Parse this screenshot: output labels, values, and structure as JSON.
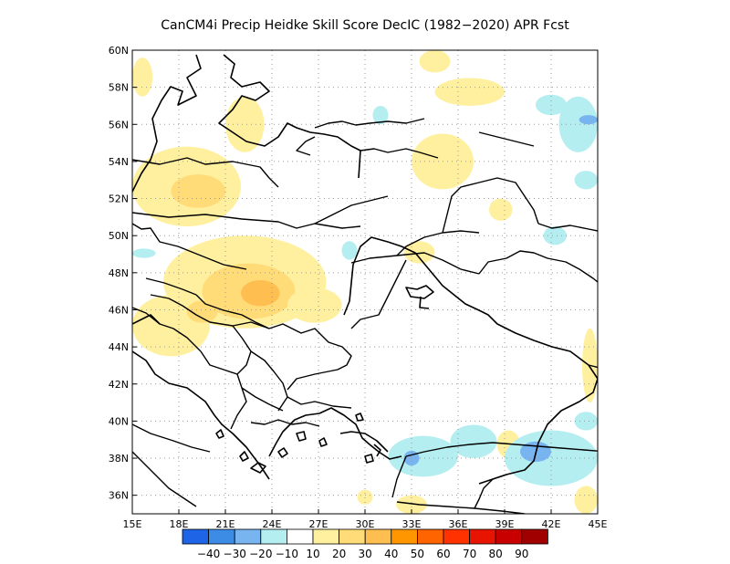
{
  "title": "CanCM4i Precip Heidke Skill Score DecIC (1982−2020) APR Fcst",
  "lon_ticks": [
    "15E",
    "18E",
    "21E",
    "24E",
    "27E",
    "30E",
    "33E",
    "36E",
    "39E",
    "42E",
    "45E"
  ],
  "lat_ticks": [
    "60N",
    "58N",
    "56N",
    "54N",
    "52N",
    "50N",
    "48N",
    "46N",
    "44N",
    "42N",
    "40N",
    "38N",
    "36N"
  ],
  "map_extent": {
    "lon": [
      15,
      45
    ],
    "lat": [
      35,
      60
    ]
  },
  "colorbar": {
    "labels": [
      "−40",
      "−30",
      "−20",
      "−10",
      "10",
      "20",
      "30",
      "40",
      "50",
      "60",
      "70",
      "80",
      "90"
    ],
    "colors": [
      "#1e64e6",
      "#3c8ce6",
      "#78b4f0",
      "#b4eef0",
      "#ffffff",
      "#fff0a0",
      "#ffdc78",
      "#ffbe50",
      "#ff9600",
      "#ff6400",
      "#ff3200",
      "#e61400",
      "#c80000",
      "#a00000"
    ]
  },
  "shaded_regions": [
    {
      "level": 10,
      "lon": [
        15.0,
        16.3
      ],
      "lat": [
        57.5,
        59.6
      ]
    },
    {
      "level": 10,
      "lon": [
        15.0,
        22.0
      ],
      "lat": [
        50.5,
        54.8
      ]
    },
    {
      "level": 20,
      "lon": [
        17.5,
        21.0
      ],
      "lat": [
        51.5,
        53.3
      ]
    },
    {
      "level": 10,
      "lon": [
        21.0,
        23.5
      ],
      "lat": [
        54.5,
        57.5
      ]
    },
    {
      "level": 10,
      "lon": [
        17.0,
        27.5
      ],
      "lat": [
        45.0,
        50.0
      ]
    },
    {
      "level": 20,
      "lon": [
        19.5,
        25.5
      ],
      "lat": [
        45.5,
        48.5
      ]
    },
    {
      "level": 30,
      "lon": [
        22.0,
        24.5
      ],
      "lat": [
        46.2,
        47.6
      ]
    },
    {
      "level": 10,
      "lon": [
        15.0,
        20.0
      ],
      "lat": [
        43.5,
        46.8
      ]
    },
    {
      "level": 20,
      "lon": [
        18.5,
        20.5
      ],
      "lat": [
        45.3,
        46.5
      ]
    },
    {
      "level": 10,
      "lon": [
        25.0,
        28.5
      ],
      "lat": [
        45.3,
        47.2
      ]
    },
    {
      "level": 10,
      "lon": [
        33.0,
        37.0
      ],
      "lat": [
        52.5,
        55.5
      ]
    },
    {
      "level": 10,
      "lon": [
        34.5,
        39.0
      ],
      "lat": [
        57.0,
        58.5
      ]
    },
    {
      "level": 10,
      "lon": [
        33.5,
        35.5
      ],
      "lat": [
        58.8,
        60.0
      ]
    },
    {
      "level": 10,
      "lon": [
        38.0,
        39.5
      ],
      "lat": [
        50.8,
        52.0
      ]
    },
    {
      "level": 10,
      "lon": [
        32.5,
        34.5
      ],
      "lat": [
        48.5,
        49.7
      ]
    },
    {
      "level": 10,
      "lon": [
        44.0,
        45.0
      ],
      "lat": [
        41.0,
        45.0
      ]
    },
    {
      "level": 10,
      "lon": [
        38.5,
        40.0
      ],
      "lat": [
        38.0,
        39.5
      ]
    },
    {
      "level": 10,
      "lon": [
        43.5,
        45.0
      ],
      "lat": [
        35.0,
        36.5
      ]
    },
    {
      "level": 10,
      "lon": [
        32.0,
        34.0
      ],
      "lat": [
        35.0,
        36.0
      ]
    },
    {
      "level": 10,
      "lon": [
        29.5,
        30.5
      ],
      "lat": [
        35.5,
        36.3
      ]
    },
    {
      "level": -10,
      "lon": [
        15.0,
        16.5
      ],
      "lat": [
        48.8,
        49.3
      ]
    },
    {
      "level": -10,
      "lon": [
        28.5,
        29.5
      ],
      "lat": [
        48.7,
        49.7
      ]
    },
    {
      "level": -10,
      "lon": [
        41.5,
        43.0
      ],
      "lat": [
        49.5,
        50.5
      ]
    },
    {
      "level": -10,
      "lon": [
        42.5,
        45.0
      ],
      "lat": [
        54.5,
        57.5
      ]
    },
    {
      "level": -10,
      "lon": [
        41.0,
        43.0
      ],
      "lat": [
        56.5,
        57.6
      ]
    },
    {
      "level": -10,
      "lon": [
        43.5,
        45.0
      ],
      "lat": [
        52.5,
        53.5
      ]
    },
    {
      "level": -20,
      "lon": [
        43.8,
        45.0
      ],
      "lat": [
        56.0,
        56.5
      ]
    },
    {
      "level": -10,
      "lon": [
        30.5,
        31.5
      ],
      "lat": [
        56.0,
        57.0
      ]
    },
    {
      "level": -10,
      "lon": [
        31.5,
        36.0
      ],
      "lat": [
        37.0,
        39.2
      ]
    },
    {
      "level": -20,
      "lon": [
        32.5,
        33.5
      ],
      "lat": [
        37.6,
        38.4
      ]
    },
    {
      "level": -10,
      "lon": [
        35.5,
        38.5
      ],
      "lat": [
        38.0,
        39.8
      ]
    },
    {
      "level": -10,
      "lon": [
        39.0,
        45.0
      ],
      "lat": [
        36.5,
        39.5
      ]
    },
    {
      "level": -20,
      "lon": [
        40.0,
        42.0
      ],
      "lat": [
        37.8,
        38.9
      ]
    },
    {
      "level": -10,
      "lon": [
        43.5,
        45.0
      ],
      "lat": [
        39.5,
        40.5
      ]
    }
  ],
  "coastline_paths": [
    "M0,155 L10,135 L20,120 L27,100 L22,75 L32,55 L42,40 L55,45 L50,60 L70,50 L60,30 L75,20 L70,5",
    "M100,5 L112,15 L108,30 L120,40 L140,35 L150,45 L135,55 L120,50 L110,65 L95,80 L110,90 L125,100 L145,105 L160,95 L170,80 L180,85 L195,90 L210,92 L225,95 L240,105 L250,110 L248,140",
    "M0,330 L15,340 L25,355 L40,365 L60,370 L80,385 L90,400 L98,410 L110,420 L125,435 L140,455 L150,470",
    "M0,300 L10,295 L20,290 L30,300",
    "M150,445 L158,430 L165,418 L178,405 L190,400 L205,398 L218,392 L232,400 L245,410 L252,425 L260,432 L270,440 L282,448 L295,445",
    "M232,290 L238,275 L240,255 L242,235 L250,215 L262,205 L280,210 L295,215 L310,222 L325,240 L340,258 L355,270 L365,278 L380,285 L390,290 L400,300 L420,310 L440,318 L460,325 L480,330 L500,345 L510,360 L505,375 L490,385 L470,395 L455,410 L445,430 L440,450 L430,460 L410,465 L395,470 L380,475",
    "M300,260 L312,262 L322,258 L330,265 L320,272 L305,270 Z",
    "M316,270 L315,282 L325,283",
    "M228,420 L240,418 L255,420 L268,428 L280,440",
    "M265,432 L272,438 L268,445",
    "M130,458 L138,452 L146,456 L140,463 Z",
    "M160,440 L166,436 L170,442 L164,446 Z",
    "M180,420 L188,418 L190,426 L183,428 Z",
    "M205,428 L210,425 L213,432 L207,434 Z",
    "M118,445 L123,440 L127,447 L121,450 Z",
    "M92,420 L97,416 L100,423 L95,425 Z",
    "M255,445 L262,443 L264,450 L257,452 Z",
    "M245,400 L250,398 L253,405 L247,406 Z"
  ],
  "border_paths": [
    "M0,120 L30,125 L60,118 L80,125 L110,122 L140,128 L150,140 L160,150",
    "M0,178 L40,183 L80,180 L120,185 L160,188 L180,195 L200,190 L230,195 L250,193",
    "M0,190 L10,196 L20,195 L30,210 L50,215 L75,225 L100,235 L125,240",
    "M15,250 L35,255 L55,262 L70,268",
    "M70,268 L80,278 L100,285 L120,290 L135,298 L150,305",
    "M20,268 L40,272 L55,280 L70,290 L85,298 L110,302 L130,298 L150,305",
    "M0,282 L15,288 L30,300 L45,305 L60,315 L75,330",
    "M110,302 L120,315 L130,330 L125,345 L115,355 L100,350 L85,345 L75,330",
    "M130,330 L145,340 L155,352 L165,365 L170,380 L160,395",
    "M150,305 L165,300 L185,310 L200,305 L215,320 L230,325 L240,335 L235,345 L225,350 L200,355 L180,360 L170,372",
    "M115,355 L120,370 L125,385 L115,400 L108,415",
    "M170,380 L185,388 L200,385 L220,390 L240,392",
    "M120,370 L135,380 L150,388 L165,395",
    "M130,408 L145,410 L160,405 L175,410 L190,408 L205,412",
    "M240,305 L250,295 L270,290 L280,270 L290,250 L300,230",
    "M240,233 L260,228 L290,225 L320,222 L340,230 L360,240 L380,245",
    "M290,225 L300,215 L320,205 L340,200 L360,198 L380,200",
    "M340,200 L345,180 L350,160 L360,150 L380,145",
    "M380,145 L400,140 L420,145 L430,160 L440,175 L445,190",
    "M380,245 L390,232 L410,228 L425,220 L440,222 L455,228 L475,232 L490,240 L505,250 L520,262 L525,280",
    "M445,190 L460,195 L480,192 L500,196 L520,200",
    "M380,90 L400,95 L420,100 L440,105",
    "M250,110 L265,108 L280,112 L300,108 L315,112 L335,118",
    "M200,190 L220,180 L240,170 L260,165 L280,160",
    "M200,85 L215,80 L230,78 L245,82 L260,80 L280,78 L300,80 L320,75",
    "M520,262 L540,272 L560,290 L580,305 L595,320 L605,335 L610,360",
    "M500,345 L520,350 L540,352 L560,360 L585,370 L605,380",
    "M605,380 L620,395 L630,410 L632,425",
    "M0,410 L20,420 L45,428 L65,435 L85,440",
    "M300,445 L320,440 L345,435 L370,432 L395,430 L420,432 L445,434 L470,436 L495,438 L520,440 L540,445",
    "M540,445 L560,450 L580,455 L600,460",
    "M300,445 L290,470 L285,490",
    "M540,445 L545,460 L550,480",
    "M290,495 L315,498 L345,500 L375,502 L405,505 L430,508",
    "M430,508 L460,515 L490,518 L520,520 L550,522",
    "M0,440 L10,450 L20,460 L30,470 L40,480 L55,490 L70,500",
    "M375,502 L380,492 L385,480 L395,470 L410,465",
    "M400,525 L410,530 L415,545",
    "M200,95 L190,100 L180,110 L195,115"
  ]
}
